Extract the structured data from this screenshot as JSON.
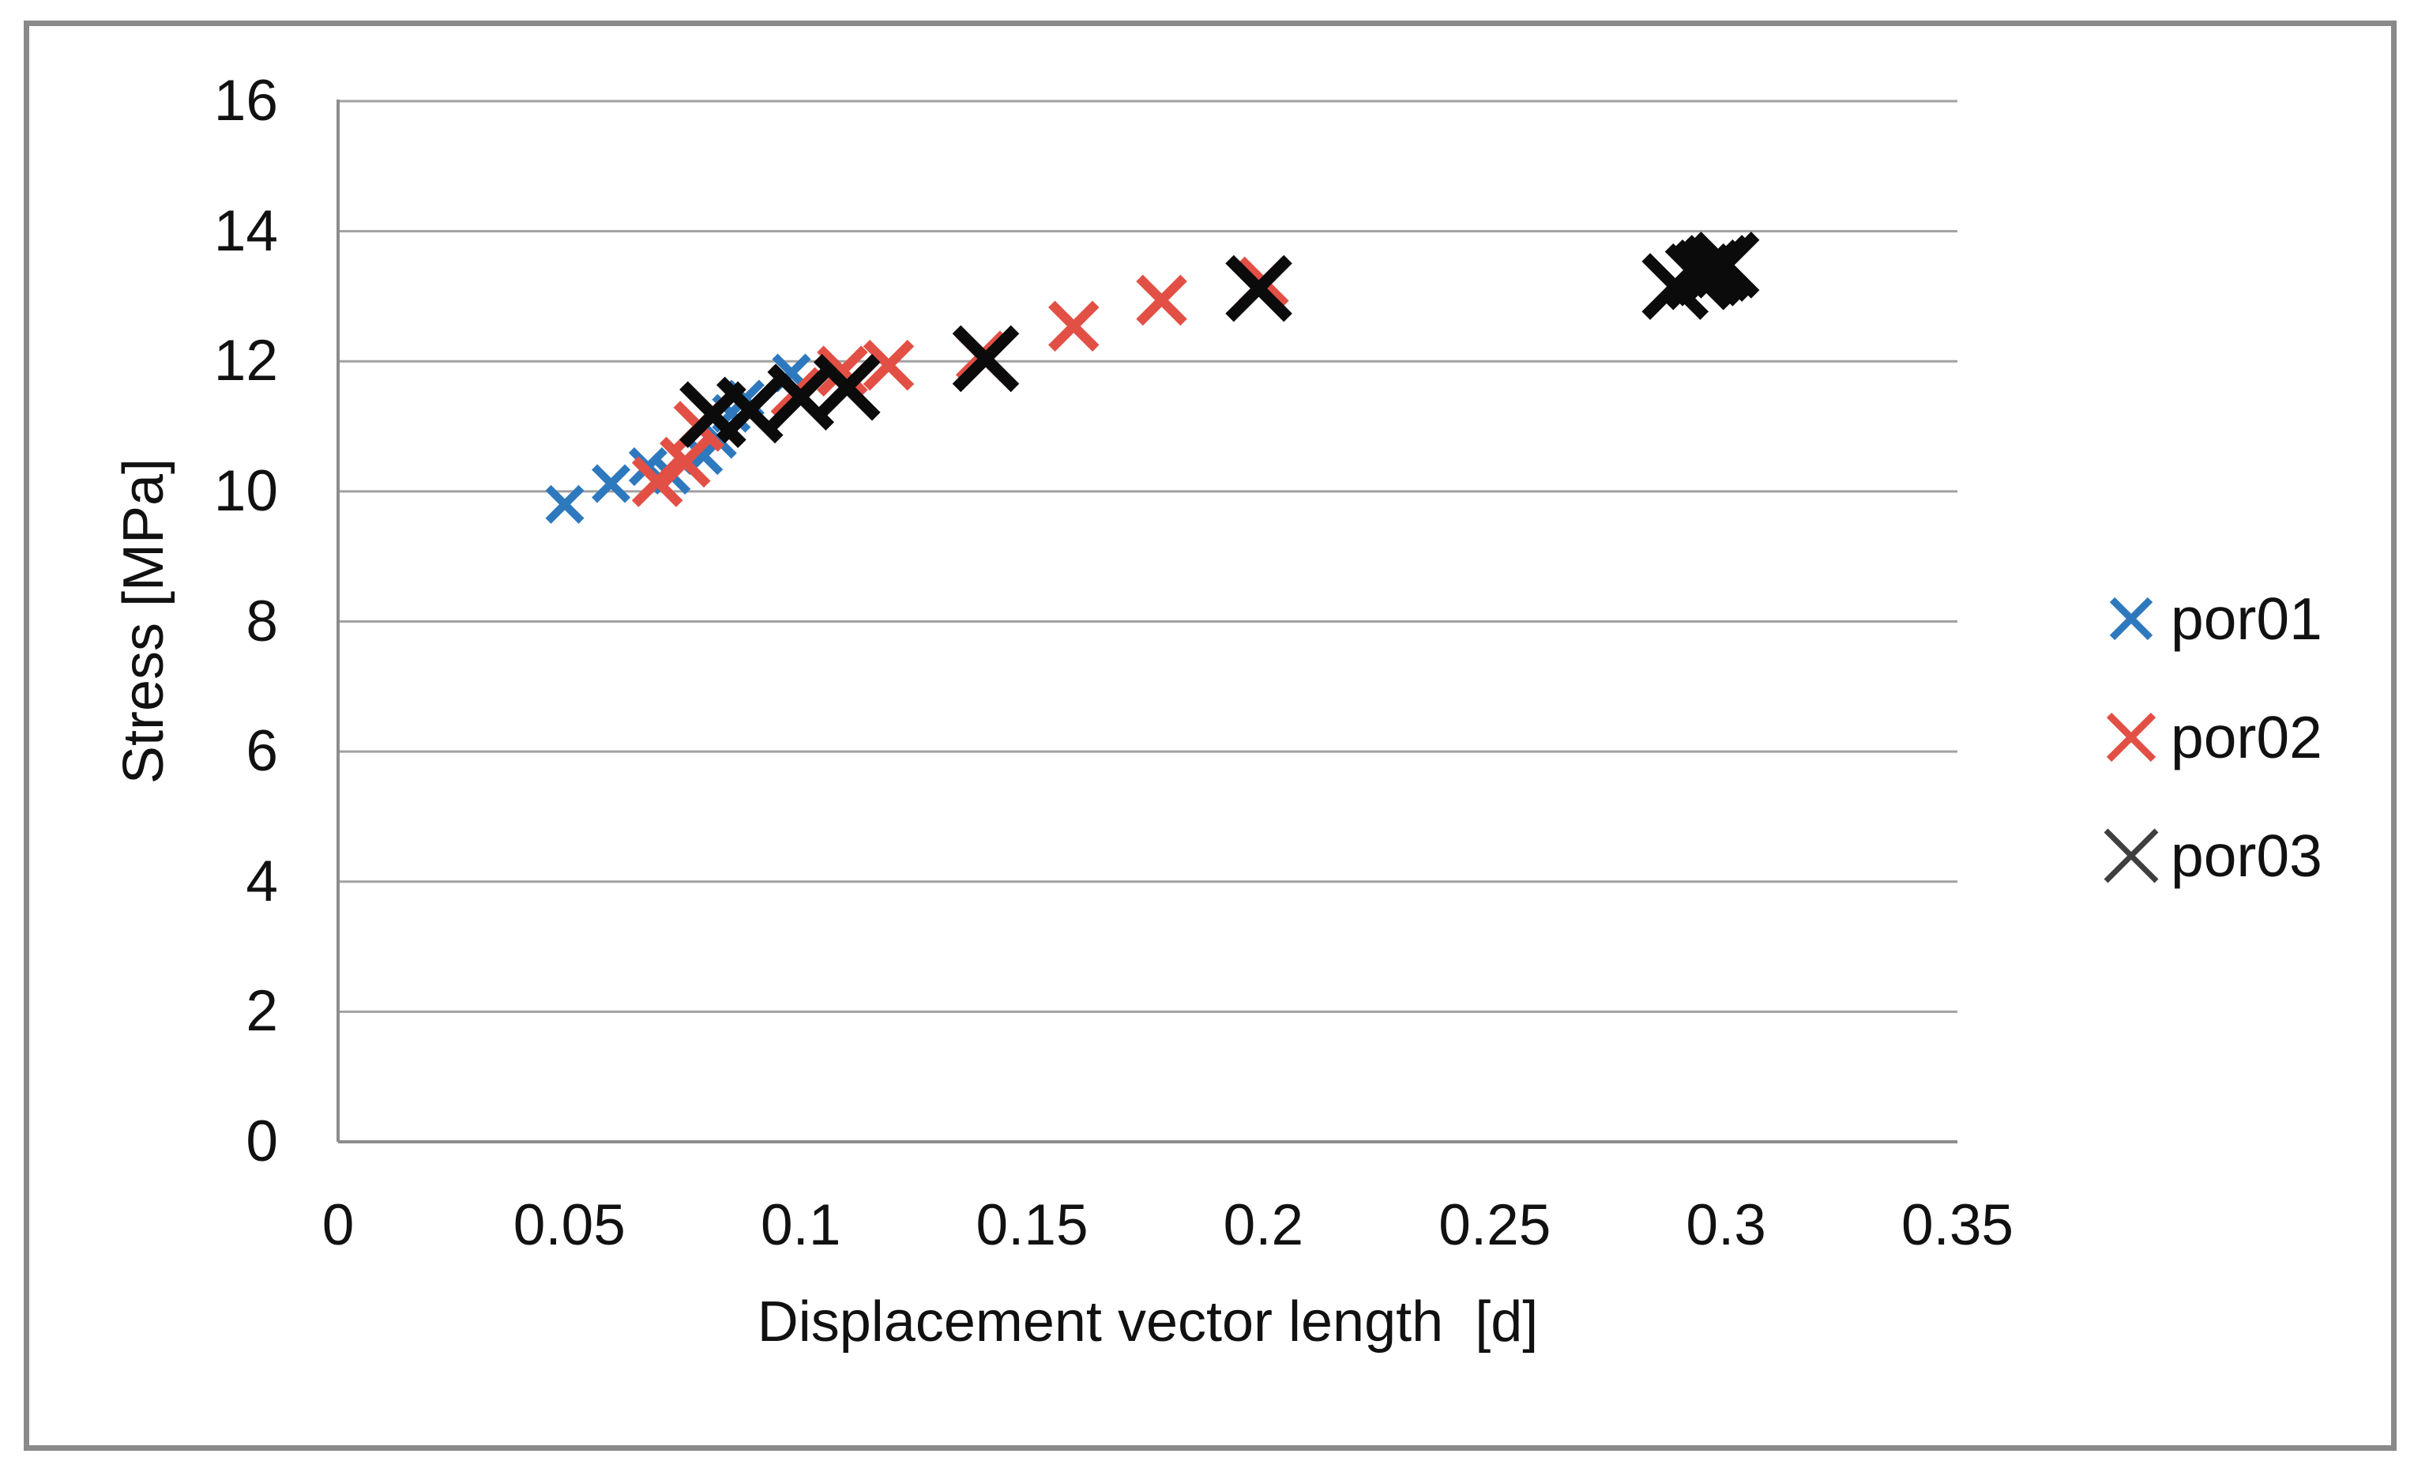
{
  "chart_data": {
    "type": "scatter",
    "title": "",
    "xlabel": "Displacement vector length  [d]",
    "ylabel": "Stress [MPa]",
    "xlim": [
      0,
      0.35
    ],
    "ylim": [
      0,
      16
    ],
    "x_ticks": [
      "0",
      "0.05",
      "0.1",
      "0.15",
      "0.2",
      "0.25",
      "0.3",
      "0.35"
    ],
    "y_ticks": [
      "0",
      "2",
      "4",
      "6",
      "8",
      "10",
      "12",
      "14",
      "16"
    ],
    "grid": "horizontal-only",
    "grid_color": "#a1a1a1",
    "axis_color": "#8c8c8c",
    "frame_color": "#8a8a8a",
    "legend_position": "right",
    "series": [
      {
        "name": "por01",
        "marker": "x",
        "marker_scale": "small",
        "color": "#2e79be",
        "points": [
          [
            0.049,
            9.8
          ],
          [
            0.059,
            10.12
          ],
          [
            0.067,
            10.38
          ],
          [
            0.072,
            10.25
          ],
          [
            0.079,
            10.55
          ],
          [
            0.082,
            10.8
          ],
          [
            0.085,
            11.2
          ],
          [
            0.088,
            11.42
          ],
          [
            0.098,
            11.82
          ]
        ]
      },
      {
        "name": "por02",
        "marker": "x",
        "marker_scale": "medium",
        "color": "#e25045",
        "points": [
          [
            0.069,
            10.15
          ],
          [
            0.075,
            10.45
          ],
          [
            0.078,
            11.0
          ],
          [
            0.099,
            11.52
          ],
          [
            0.109,
            11.85
          ],
          [
            0.119,
            11.94
          ],
          [
            0.139,
            12.08
          ],
          [
            0.159,
            12.54
          ],
          [
            0.178,
            12.94
          ],
          [
            0.2,
            13.22
          ]
        ]
      },
      {
        "name": "por03",
        "marker": "x",
        "marker_scale": "large",
        "color": "#0b0b0b",
        "legend_color": "#3f3f3f",
        "points": [
          [
            0.081,
            11.18
          ],
          [
            0.089,
            11.25
          ],
          [
            0.1,
            11.45
          ],
          [
            0.11,
            11.6
          ],
          [
            0.14,
            12.04
          ],
          [
            0.199,
            13.12
          ],
          [
            0.289,
            13.15
          ],
          [
            0.294,
            13.3
          ],
          [
            0.296,
            13.36
          ],
          [
            0.298,
            13.43
          ],
          [
            0.3,
            13.48
          ]
        ]
      }
    ]
  }
}
